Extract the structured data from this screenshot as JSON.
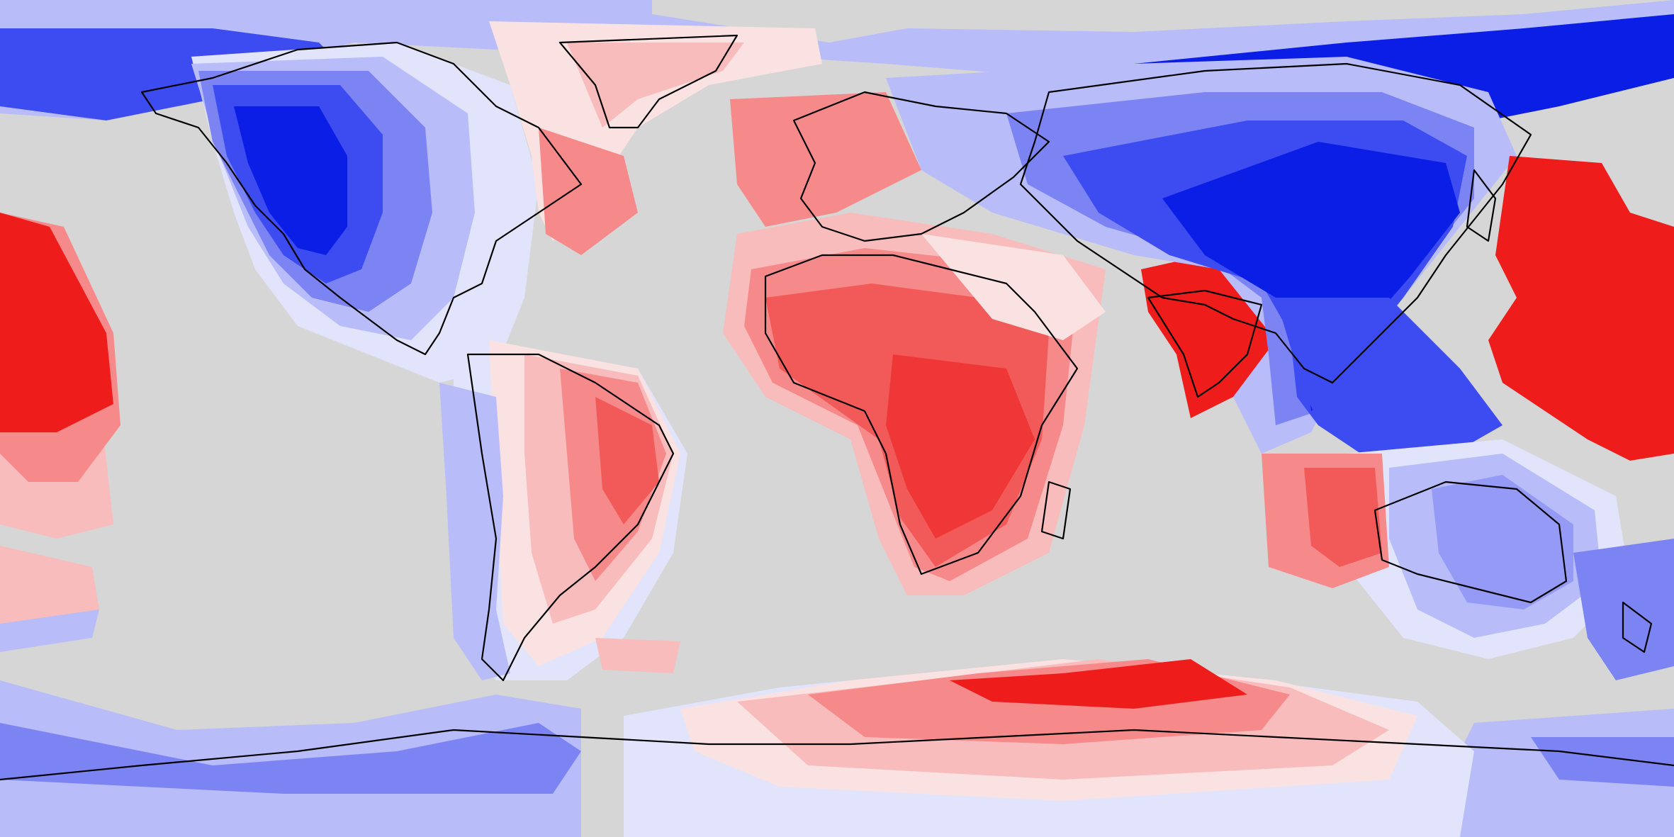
{
  "map": {
    "projection": "equirectangular",
    "background_color": "#d6d6d6",
    "coastline_color": "#000000",
    "palette": {
      "blue_4": "#0a1ee6",
      "blue_3": "#3c4cf0",
      "blue_2": "#7c84f4",
      "blue_1": "#b8bcf8",
      "blue_0": "#e2e4fb",
      "neutral": "#f5f5f5",
      "red_0": "#fbe2e2",
      "red_1": "#f9bcbc",
      "red_2": "#f68a8a",
      "red_3": "#f25a5a",
      "red_4": "#ef1c1c"
    },
    "regions": [
      {
        "name": "north-america-anomaly",
        "sign": "negative"
      },
      {
        "name": "north-atlantic-anomaly",
        "sign": "positive"
      },
      {
        "name": "africa-anomaly",
        "sign": "positive"
      },
      {
        "name": "india-anomaly",
        "sign": "positive"
      },
      {
        "name": "east-asia-anomaly",
        "sign": "negative"
      },
      {
        "name": "west-pacific-anomaly",
        "sign": "positive"
      },
      {
        "name": "east-pacific-anomaly",
        "sign": "positive"
      },
      {
        "name": "australia-anomaly",
        "sign": "negative"
      },
      {
        "name": "antarctic-anomaly",
        "sign": "positive"
      }
    ]
  }
}
